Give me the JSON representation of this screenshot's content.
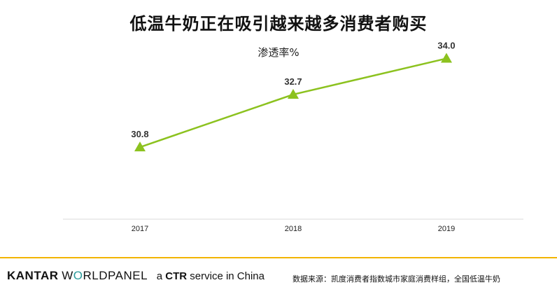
{
  "chart_data": {
    "type": "line",
    "title": "低温牛奶正在吸引越来越多消费者购买",
    "subtitle": "渗透率%",
    "categories": [
      "2017",
      "2018",
      "2019"
    ],
    "series": [
      {
        "values": [
          30.8,
          32.7,
          34.0
        ],
        "labels": [
          "30.8",
          "32.7",
          "34.0"
        ]
      }
    ],
    "ylim": [
      28.2,
      35.1
    ],
    "line_color": "#8cc21f",
    "marker": "triangle",
    "grid": false
  },
  "footer": {
    "brand_kantar": "KANTAR",
    "brand_w": "W",
    "brand_o": "O",
    "brand_rest": "RLDPANEL",
    "tag_a": "a",
    "tag_ctr": "CTR",
    "tag_rest": "service in China",
    "source": "数据来源：凯度消费者指数城市家庭消费样组，全国低温牛奶",
    "accent_color": "#f2b400"
  }
}
